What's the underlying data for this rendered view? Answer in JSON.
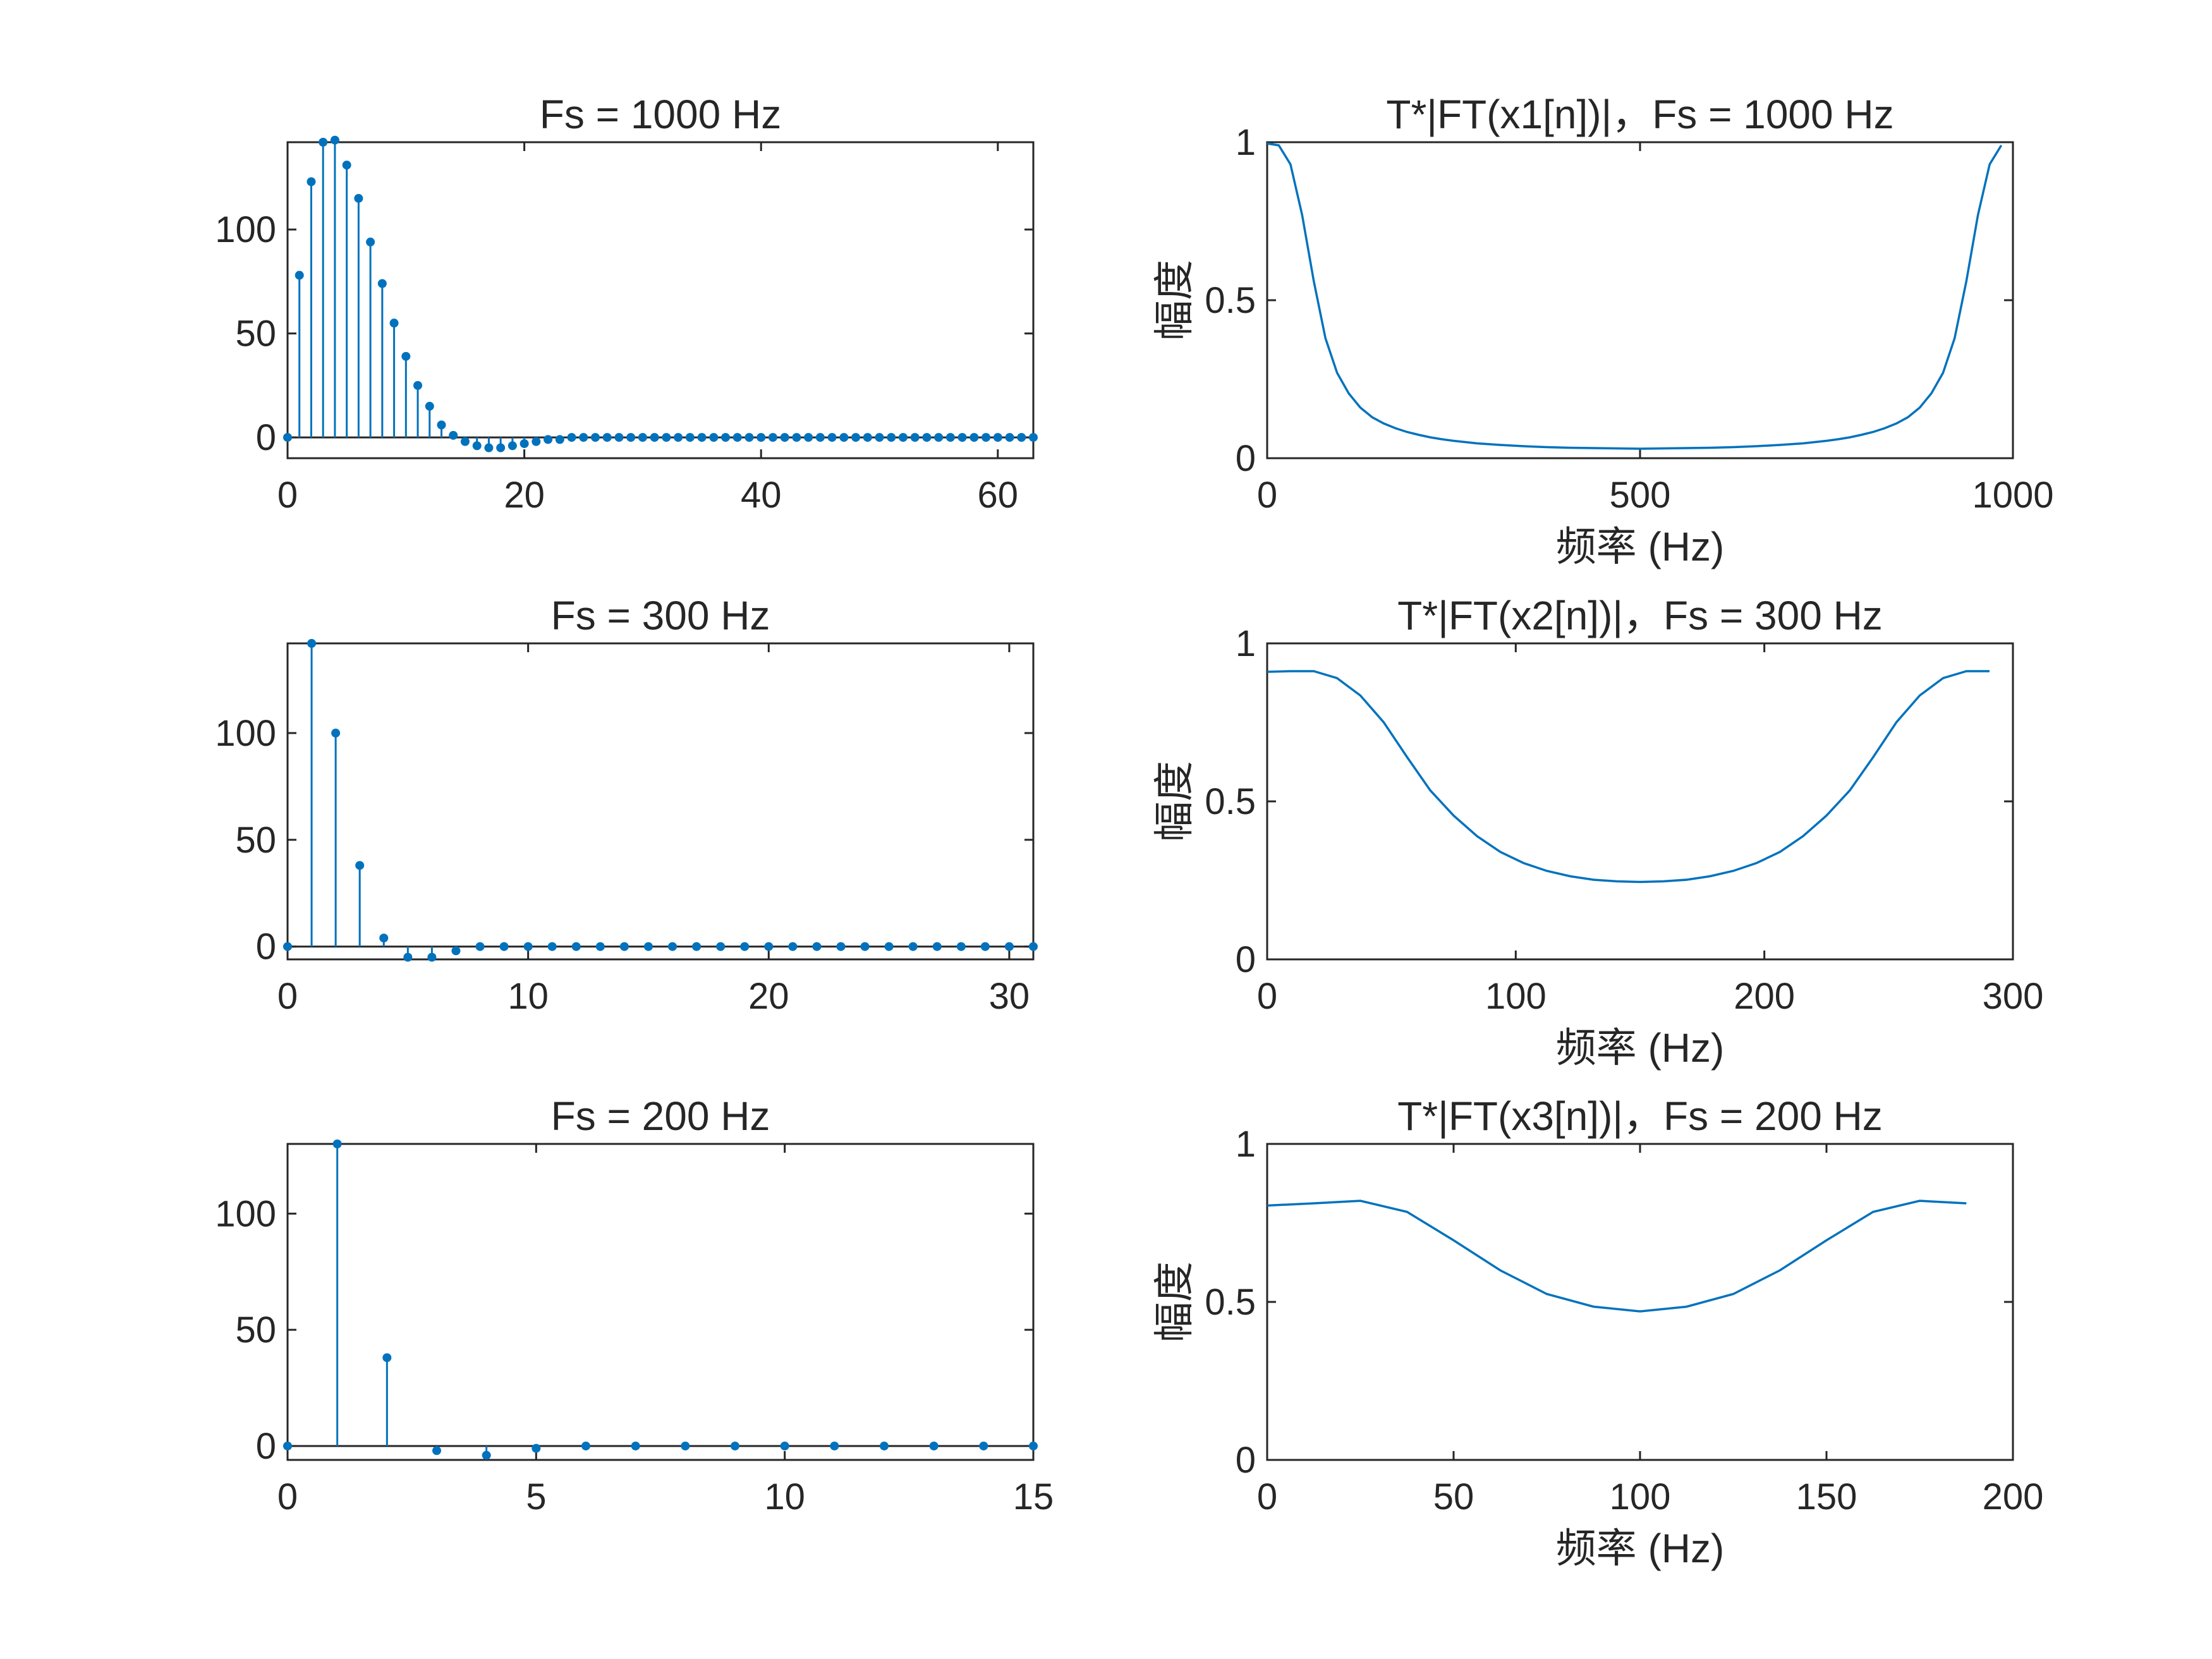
{
  "figure": {
    "background": "#ffffff",
    "axis_color": "#262626",
    "series_color": "#0072BD"
  },
  "chart_data": [
    {
      "id": "stem1",
      "type": "stem",
      "title": "Fs = 1000 Hz",
      "xlabel": "",
      "ylabel": "",
      "xlim": [
        0,
        63
      ],
      "ylim": [
        -10,
        142
      ],
      "xticks": [
        0,
        20,
        40,
        60
      ],
      "yticks": [
        0,
        50,
        100
      ],
      "x": [
        0,
        1,
        2,
        3,
        4,
        5,
        6,
        7,
        8,
        9,
        10,
        11,
        12,
        13,
        14,
        15,
        16,
        17,
        18,
        19,
        20,
        21,
        22,
        23,
        24,
        25,
        26,
        27,
        28,
        29,
        30,
        31,
        32,
        33,
        34,
        35,
        36,
        37,
        38,
        39,
        40,
        41,
        42,
        43,
        44,
        45,
        46,
        47,
        48,
        49,
        50,
        51,
        52,
        53,
        54,
        55,
        56,
        57,
        58,
        59,
        60,
        61,
        62,
        63
      ],
      "values": [
        0,
        78,
        123,
        142,
        143,
        131,
        115,
        94,
        74,
        55,
        39,
        25,
        15,
        6,
        1,
        -2,
        -4,
        -5,
        -5,
        -4,
        -3,
        -2,
        -1,
        -1,
        0,
        0,
        0,
        0,
        0,
        0,
        0,
        0,
        0,
        0,
        0,
        0,
        0,
        0,
        0,
        0,
        0,
        0,
        0,
        0,
        0,
        0,
        0,
        0,
        0,
        0,
        0,
        0,
        0,
        0,
        0,
        0,
        0,
        0,
        0,
        0,
        0,
        0,
        0,
        0
      ]
    },
    {
      "id": "line1",
      "type": "line",
      "title": "T*|FT(x1[n])|，Fs = 1000 Hz",
      "xlabel": "频率 (Hz)",
      "ylabel": "幅度",
      "xlim": [
        0,
        1000
      ],
      "ylim": [
        0,
        1
      ],
      "xticks": [
        0,
        500,
        1000
      ],
      "yticks": [
        0,
        0.5,
        1
      ],
      "x": [
        0,
        15.6,
        31.3,
        46.9,
        62.5,
        78.1,
        93.8,
        109.4,
        125,
        140.6,
        156.3,
        171.9,
        187.5,
        203.1,
        218.8,
        234.4,
        250,
        281.3,
        312.5,
        343.8,
        375,
        406.3,
        437.5,
        468.8,
        500,
        531.3,
        562.5,
        593.8,
        625,
        656.3,
        687.5,
        718.8,
        750,
        765.6,
        781.3,
        796.9,
        812.5,
        828.1,
        843.8,
        859.4,
        875,
        890.6,
        906.3,
        921.9,
        937.5,
        953.1,
        968.8,
        984.4
      ],
      "y": [
        0.996,
        0.99,
        0.93,
        0.77,
        0.56,
        0.38,
        0.27,
        0.205,
        0.16,
        0.13,
        0.11,
        0.095,
        0.083,
        0.074,
        0.066,
        0.06,
        0.055,
        0.047,
        0.042,
        0.038,
        0.035,
        0.033,
        0.032,
        0.031,
        0.03,
        0.031,
        0.032,
        0.033,
        0.035,
        0.038,
        0.042,
        0.047,
        0.055,
        0.06,
        0.066,
        0.074,
        0.083,
        0.095,
        0.11,
        0.13,
        0.16,
        0.205,
        0.27,
        0.38,
        0.56,
        0.77,
        0.93,
        0.99
      ]
    },
    {
      "id": "stem2",
      "type": "stem",
      "title": "Fs = 300 Hz",
      "xlabel": "",
      "ylabel": "",
      "xlim": [
        0,
        31
      ],
      "ylim": [
        -6,
        142
      ],
      "xticks": [
        0,
        10,
        20,
        30
      ],
      "yticks": [
        0,
        50,
        100
      ],
      "x": [
        0,
        1,
        2,
        3,
        4,
        5,
        6,
        7,
        8,
        9,
        10,
        11,
        12,
        13,
        14,
        15,
        16,
        17,
        18,
        19,
        20,
        21,
        22,
        23,
        24,
        25,
        26,
        27,
        28,
        29,
        30,
        31
      ],
      "values": [
        0,
        142,
        100,
        38,
        4,
        -5,
        -5,
        -2,
        0,
        0,
        0,
        0,
        0,
        0,
        0,
        0,
        0,
        0,
        0,
        0,
        0,
        0,
        0,
        0,
        0,
        0,
        0,
        0,
        0,
        0,
        0,
        0
      ]
    },
    {
      "id": "line2",
      "type": "line",
      "title": "T*|FT(x2[n])|，Fs = 300 Hz",
      "xlabel": "频率 (Hz)",
      "ylabel": "幅度",
      "xlim": [
        0,
        300
      ],
      "ylim": [
        0,
        1
      ],
      "xticks": [
        0,
        100,
        200,
        300
      ],
      "yticks": [
        0,
        0.5,
        1
      ],
      "x": [
        0,
        9.4,
        18.8,
        28.1,
        37.5,
        46.9,
        56.3,
        65.6,
        75,
        84.4,
        93.8,
        103.1,
        112.5,
        121.9,
        131.3,
        140.6,
        150,
        159.4,
        168.8,
        178.1,
        187.5,
        196.9,
        206.3,
        215.6,
        225,
        234.4,
        243.8,
        253.1,
        262.5,
        271.9,
        281.3,
        290.6
      ],
      "y": [
        0.91,
        0.912,
        0.912,
        0.89,
        0.835,
        0.75,
        0.64,
        0.535,
        0.455,
        0.39,
        0.34,
        0.305,
        0.28,
        0.263,
        0.252,
        0.247,
        0.245,
        0.247,
        0.252,
        0.263,
        0.28,
        0.305,
        0.34,
        0.39,
        0.455,
        0.535,
        0.64,
        0.75,
        0.835,
        0.89,
        0.912,
        0.912
      ]
    },
    {
      "id": "stem3",
      "type": "stem",
      "title": "Fs = 200 Hz",
      "xlabel": "",
      "ylabel": "",
      "xlim": [
        0,
        15
      ],
      "ylim": [
        -6,
        130
      ],
      "xticks": [
        0,
        5,
        10,
        15
      ],
      "yticks": [
        0,
        50,
        100
      ],
      "x": [
        0,
        1,
        2,
        3,
        4,
        5,
        6,
        7,
        8,
        9,
        10,
        11,
        12,
        13,
        14,
        15
      ],
      "values": [
        0,
        130,
        38,
        -2,
        -4,
        -1,
        0,
        0,
        0,
        0,
        0,
        0,
        0,
        0,
        0,
        0
      ]
    },
    {
      "id": "line3",
      "type": "line",
      "title": "T*|FT(x3[n])|，Fs = 200 Hz",
      "xlabel": "频率 (Hz)",
      "ylabel": "幅度",
      "xlim": [
        0,
        200
      ],
      "ylim": [
        0,
        1
      ],
      "xticks": [
        0,
        50,
        100,
        150,
        200
      ],
      "yticks": [
        0,
        0.5,
        1
      ],
      "x": [
        0,
        12.5,
        25,
        37.5,
        50,
        62.5,
        75,
        87.5,
        100,
        112.5,
        125,
        137.5,
        150,
        162.5,
        175,
        187.5
      ],
      "y": [
        0.805,
        0.812,
        0.82,
        0.785,
        0.695,
        0.6,
        0.525,
        0.485,
        0.47,
        0.485,
        0.525,
        0.6,
        0.695,
        0.785,
        0.82,
        0.812
      ]
    }
  ]
}
